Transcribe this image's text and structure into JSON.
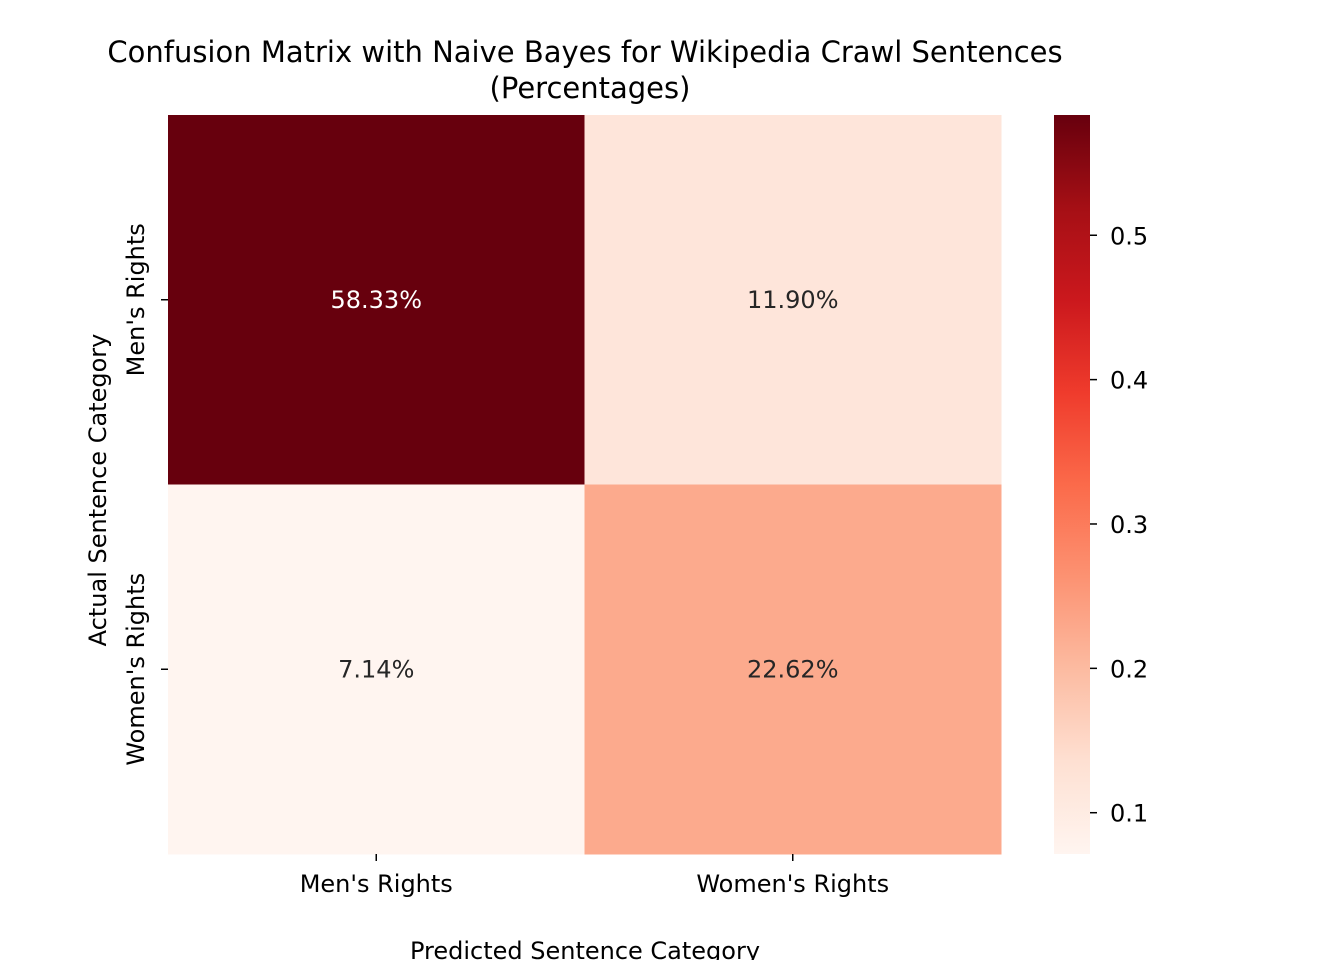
{
  "chart_data": {
    "type": "heatmap",
    "title_line1": "Confusion Matrix with Naive Bayes for Wikipedia Crawl Sentences",
    "title_line2": "(Percentages)",
    "xlabel": "Predicted Sentence Category",
    "ylabel": "Actual Sentence Category",
    "x_categories": [
      "Men's Rights",
      "Women's Rights"
    ],
    "y_categories": [
      "Men's Rights",
      "Women's Rights"
    ],
    "values": [
      [
        0.5833,
        0.119
      ],
      [
        0.0714,
        0.2262
      ]
    ],
    "cell_labels": [
      [
        "58.33%",
        "11.90%"
      ],
      [
        "7.14%",
        "22.62%"
      ]
    ],
    "colormap": "Reds",
    "colorbar": {
      "min": 0.0714,
      "max": 0.5833,
      "ticks": [
        0.1,
        0.2,
        0.3,
        0.4,
        0.5
      ],
      "tick_labels": [
        "0.1",
        "0.2",
        "0.3",
        "0.4",
        "0.5"
      ]
    },
    "legend": "none",
    "grid": false
  }
}
